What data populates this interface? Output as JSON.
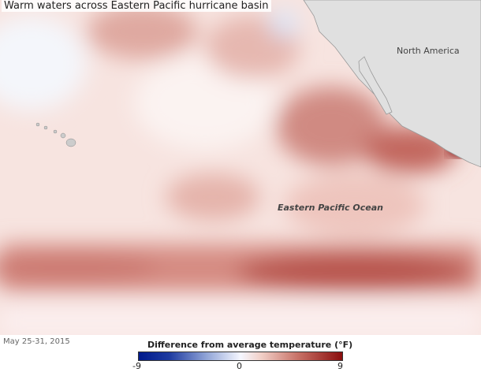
{
  "title": "Warm waters across Eastern Pacific hurricane basin",
  "labels": {
    "continent": "North America",
    "ocean": "Eastern Pacific Ocean"
  },
  "date": "May 25-31, 2015",
  "legend": {
    "title": "Difference from average temperature (°F)",
    "min": "-9",
    "mid": "0",
    "max": "9",
    "colors": {
      "cold": "#001a8c",
      "neutral": "#f5f7ff",
      "warm": "#8a0d0d"
    }
  },
  "colors": {
    "land": "#e0e0e0",
    "ocean_warm": "#b5443f",
    "ocean_mild": "#f3d6d0"
  }
}
